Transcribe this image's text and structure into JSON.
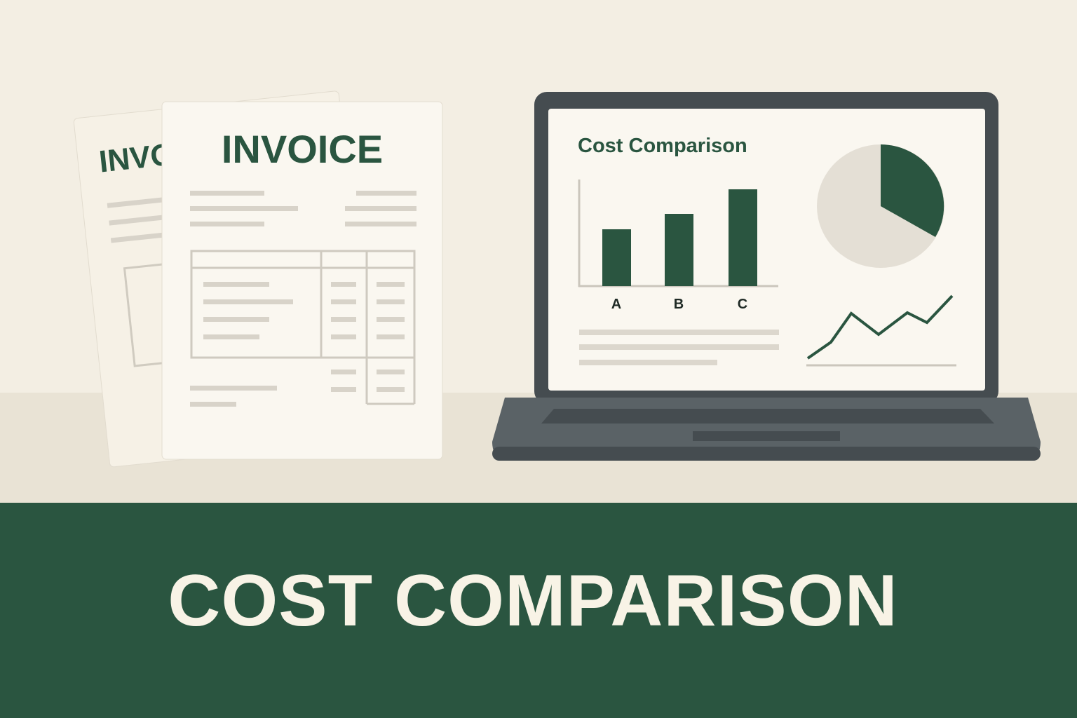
{
  "invoice": {
    "front_title": "INVOICE",
    "back_title": "INVOICE"
  },
  "laptop": {
    "screen_title": "Cost Comparison",
    "bar_labels": [
      "A",
      "B",
      "C"
    ]
  },
  "banner": {
    "title": "COST COMPARISON"
  },
  "colors": {
    "brand_green": "#2a5540",
    "background": "#f3eee3",
    "laptop": "#454c50",
    "text_cream": "#f8f3e6"
  }
}
